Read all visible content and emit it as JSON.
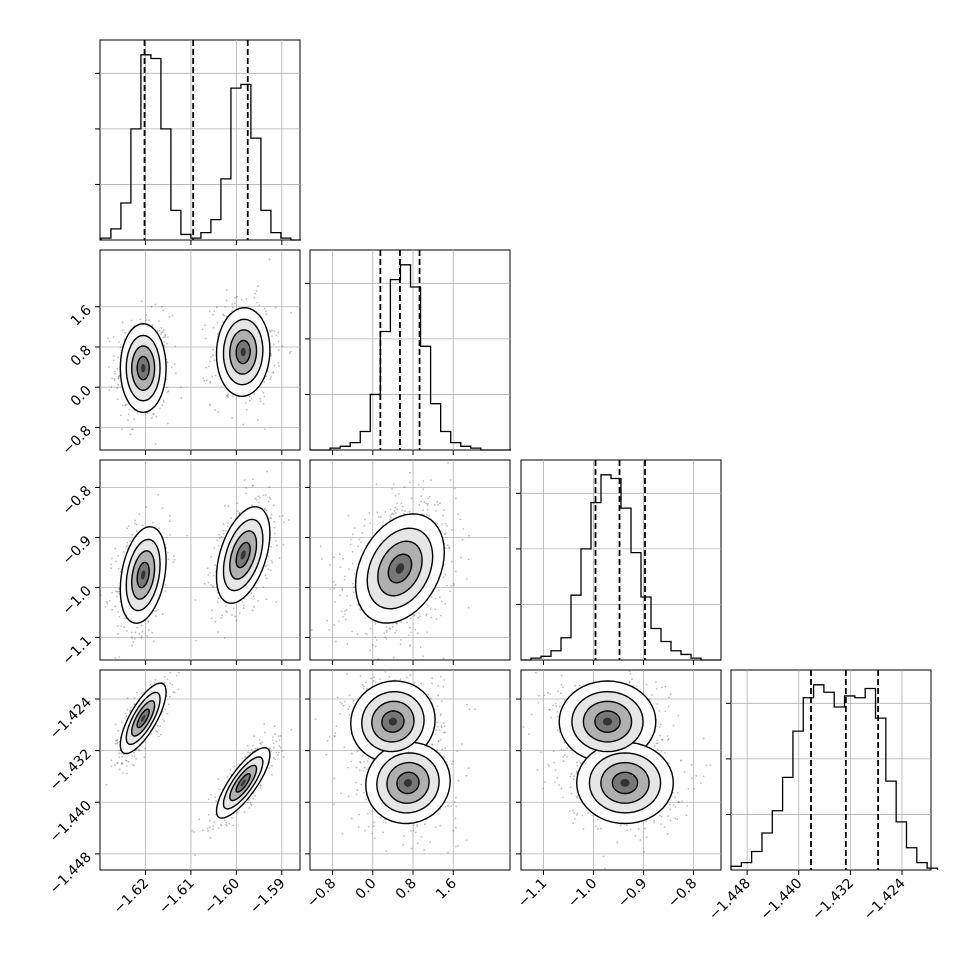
{
  "chart_data": {
    "type": "corner",
    "title": "",
    "grid": true,
    "colors": {
      "line": "#000000",
      "grid": "#b0b0b0",
      "points": "#000000"
    },
    "axes": [
      {
        "index": 0,
        "range": [
          -1.63,
          -1.586
        ],
        "ticks": [
          -1.62,
          -1.61,
          -1.6,
          -1.59
        ],
        "tick_labels": [
          "−1.62",
          "−1.61",
          "−1.60",
          "−1.59"
        ],
        "quantiles": [
          -1.6202,
          -1.6095,
          -1.5975
        ]
      },
      {
        "index": 1,
        "range": [
          -1.25,
          2.73
        ],
        "ticks": [
          -0.8,
          0.0,
          0.8,
          1.6
        ],
        "tick_labels": [
          "−0.8",
          "0.0",
          "0.8",
          "1.6"
        ],
        "quantiles": [
          0.15,
          0.54,
          0.93
        ]
      },
      {
        "index": 2,
        "range": [
          -1.145,
          -0.745
        ],
        "ticks": [
          -1.1,
          -1.0,
          -0.9,
          -0.8
        ],
        "tick_labels": [
          "−1.1",
          "−1.0",
          "−0.9",
          "−0.8"
        ],
        "quantiles": [
          -0.996,
          -0.948,
          -0.897
        ]
      },
      {
        "index": 3,
        "range": [
          -1.4505,
          -1.4195
        ],
        "ticks": [
          -1.448,
          -1.44,
          -1.432,
          -1.424
        ],
        "tick_labels": [
          "−1.448",
          "−1.440",
          "−1.432",
          "−1.424"
        ],
        "quantiles": [
          -1.4381,
          -1.4327,
          -1.4277
        ]
      }
    ],
    "histograms": [
      {
        "axis": 0,
        "x": [
          -1.6287,
          -1.6265,
          -1.6243,
          -1.6221,
          -1.6199,
          -1.6177,
          -1.6155,
          -1.6133,
          -1.6111,
          -1.6089,
          -1.6067,
          -1.6045,
          -1.6023,
          -1.6001,
          -1.5979,
          -1.5957,
          -1.5935,
          -1.5913,
          -1.5891,
          -1.5869
        ],
        "values": [
          1,
          6,
          20,
          60,
          100,
          98,
          60,
          16,
          3,
          1,
          4,
          11,
          33,
          82,
          84,
          55,
          16,
          4,
          1,
          0
        ]
      },
      {
        "axis": 1,
        "x": [
          -1.15,
          -0.95,
          -0.75,
          -0.55,
          -0.35,
          -0.15,
          0.05,
          0.25,
          0.45,
          0.65,
          0.85,
          1.05,
          1.25,
          1.45,
          1.65,
          1.85,
          2.05,
          2.25,
          2.45,
          2.65
        ],
        "values": [
          0,
          0,
          1,
          2,
          4,
          10,
          30,
          64,
          92,
          100,
          88,
          56,
          25,
          10,
          4,
          2,
          1,
          0,
          0,
          0
        ]
      },
      {
        "axis": 2,
        "x": [
          -1.135,
          -1.115,
          -1.095,
          -1.075,
          -1.055,
          -1.035,
          -1.015,
          -0.995,
          -0.975,
          -0.955,
          -0.935,
          -0.915,
          -0.895,
          -0.875,
          -0.855,
          -0.835,
          -0.815,
          -0.795,
          -0.775,
          -0.755
        ],
        "values": [
          0,
          1,
          2,
          5,
          12,
          35,
          60,
          85,
          100,
          98,
          82,
          58,
          34,
          17,
          10,
          5,
          3,
          1,
          0,
          0
        ]
      },
      {
        "axis": 3,
        "x": [
          -1.4497,
          -1.4481,
          -1.4465,
          -1.4449,
          -1.4433,
          -1.4417,
          -1.4401,
          -1.4385,
          -1.4369,
          -1.4353,
          -1.4337,
          -1.4321,
          -1.4305,
          -1.4289,
          -1.4273,
          -1.4257,
          -1.4241,
          -1.4225,
          -1.4209,
          -1.4193
        ],
        "values": [
          2,
          4,
          10,
          20,
          32,
          50,
          75,
          93,
          100,
          96,
          88,
          94,
          93,
          98,
          82,
          48,
          26,
          12,
          4,
          1
        ]
      }
    ],
    "pairs": [
      {
        "x_axis": 0,
        "y_axis": 1,
        "modes": [
          {
            "mean": [
              -1.6205,
              0.38
            ],
            "std": [
              0.0024,
              0.42
            ],
            "rho": 0.0
          },
          {
            "mean": [
              -1.5985,
              0.7
            ],
            "std": [
              0.0028,
              0.42
            ],
            "rho": 0.05
          }
        ]
      },
      {
        "x_axis": 0,
        "y_axis": 2,
        "modes": [
          {
            "mean": [
              -1.6205,
              -0.975
            ],
            "std": [
              0.0024,
              0.046
            ],
            "rho": 0.3
          },
          {
            "mean": [
              -1.5985,
              -0.935
            ],
            "std": [
              0.0028,
              0.046
            ],
            "rho": 0.45
          }
        ]
      },
      {
        "x_axis": 0,
        "y_axis": 3,
        "modes": [
          {
            "mean": [
              -1.6205,
              -1.427
            ],
            "std": [
              0.0024,
              0.0026
            ],
            "rho": 0.75
          },
          {
            "mean": [
              -1.5985,
              -1.437
            ],
            "std": [
              0.0028,
              0.0026
            ],
            "rho": 0.8
          }
        ]
      },
      {
        "x_axis": 1,
        "y_axis": 2,
        "modes": [
          {
            "mean": [
              0.54,
              -0.962
            ],
            "std": [
              0.42,
              0.052
            ],
            "rho": 0.3
          }
        ]
      },
      {
        "x_axis": 1,
        "y_axis": 3,
        "modes": [
          {
            "mean": [
              0.4,
              -1.4275
            ],
            "std": [
              0.4,
              0.003
            ],
            "rho": 0.05
          },
          {
            "mean": [
              0.7,
              -1.437
            ],
            "std": [
              0.4,
              0.003
            ],
            "rho": 0.05
          }
        ]
      },
      {
        "x_axis": 2,
        "y_axis": 3,
        "modes": [
          {
            "mean": [
              -0.972,
              -1.4275
            ],
            "std": [
              0.046,
              0.003
            ],
            "rho": 0.0
          },
          {
            "mean": [
              -0.937,
              -1.437
            ],
            "std": [
              0.046,
              0.003
            ],
            "rho": 0.0
          }
        ]
      }
    ]
  }
}
